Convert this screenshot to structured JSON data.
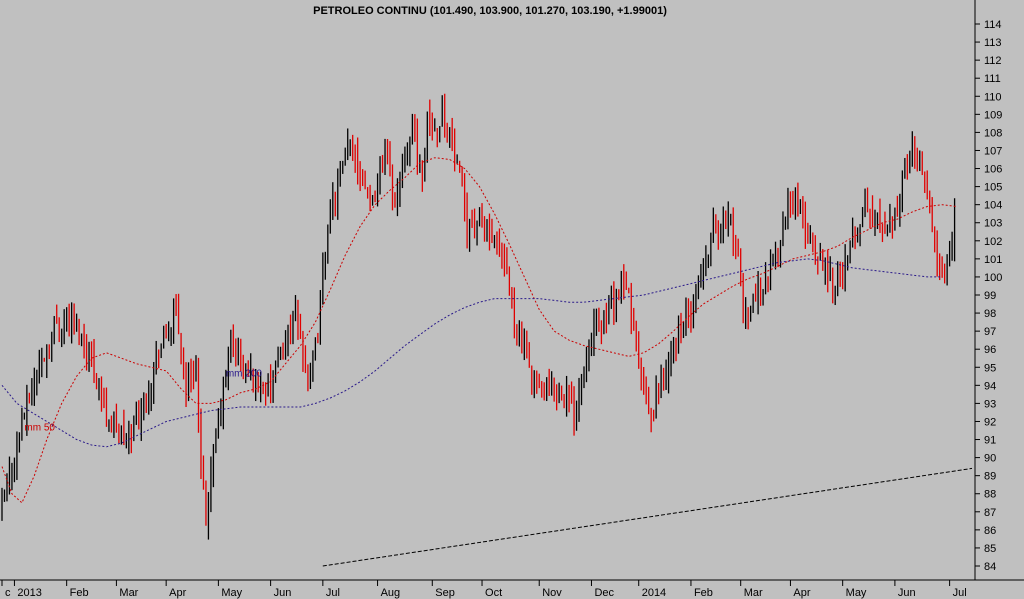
{
  "chart_data": {
    "type": "line",
    "title": "PETROLEO CONTINU (101.490, 103.900, 101.270, 103.190, +1.99001)",
    "ylim": [
      84,
      114
    ],
    "y_ticks": [
      84,
      85,
      86,
      87,
      88,
      89,
      90,
      91,
      92,
      93,
      94,
      95,
      96,
      97,
      98,
      99,
      100,
      101,
      102,
      103,
      104,
      105,
      106,
      107,
      108,
      109,
      110,
      111,
      112,
      113,
      114
    ],
    "x_labels": [
      {
        "label": "c",
        "index": 0
      },
      {
        "label": "2013",
        "index": 5
      },
      {
        "label": "Feb",
        "index": 26
      },
      {
        "label": "Mar",
        "index": 46
      },
      {
        "label": "Apr",
        "index": 66
      },
      {
        "label": "May",
        "index": 87
      },
      {
        "label": "Jun",
        "index": 108
      },
      {
        "label": "Jul",
        "index": 129
      },
      {
        "label": "Aug",
        "index": 151
      },
      {
        "label": "Sep",
        "index": 173
      },
      {
        "label": "Oct",
        "index": 193
      },
      {
        "label": "Nov",
        "index": 216
      },
      {
        "label": "Dec",
        "index": 237
      },
      {
        "label": "2014",
        "index": 256
      },
      {
        "label": "Feb",
        "index": 277
      },
      {
        "label": "Mar",
        "index": 297
      },
      {
        "label": "Apr",
        "index": 317
      },
      {
        "label": "May",
        "index": 338
      },
      {
        "label": "Jun",
        "index": 359
      },
      {
        "label": "Jul",
        "index": 381
      }
    ],
    "series": [
      {
        "name": "PETROLEO CONTINU",
        "color": "#e00000",
        "close_path": [
          [
            0,
            87
          ],
          [
            8,
            92
          ],
          [
            15,
            95
          ],
          [
            22,
            97.5
          ],
          [
            28,
            97.5
          ],
          [
            35,
            96
          ],
          [
            42,
            92.5
          ],
          [
            50,
            91
          ],
          [
            57,
            93
          ],
          [
            63,
            96
          ],
          [
            70,
            98
          ],
          [
            74,
            94
          ],
          [
            78,
            95
          ],
          [
            80,
            89
          ],
          [
            82,
            86.5
          ],
          [
            85,
            90
          ],
          [
            88,
            93
          ],
          [
            92,
            96.5
          ],
          [
            97,
            95
          ],
          [
            103,
            94
          ],
          [
            108,
            94
          ],
          [
            113,
            96
          ],
          [
            118,
            98
          ],
          [
            124,
            94
          ],
          [
            127,
            97
          ],
          [
            131,
            103
          ],
          [
            136,
            105.5
          ],
          [
            140,
            107.5
          ],
          [
            144,
            106
          ],
          [
            149,
            104
          ],
          [
            154,
            107.5
          ],
          [
            158,
            104
          ],
          [
            162,
            107
          ],
          [
            166,
            108
          ],
          [
            169,
            105
          ],
          [
            171,
            109
          ],
          [
            174,
            108
          ],
          [
            177,
            109
          ],
          [
            180,
            108
          ],
          [
            183,
            106
          ],
          [
            187,
            103
          ],
          [
            191,
            103
          ],
          [
            195,
            102.5
          ],
          [
            199,
            101.5
          ],
          [
            203,
            100
          ],
          [
            205,
            98.5
          ],
          [
            208,
            96.5
          ],
          [
            212,
            95
          ],
          [
            216,
            93.5
          ],
          [
            222,
            94
          ],
          [
            227,
            93.5
          ],
          [
            230,
            92.5
          ],
          [
            233,
            94.5
          ],
          [
            237,
            97
          ],
          [
            241,
            97.5
          ],
          [
            245,
            98.5
          ],
          [
            249,
            99.5
          ],
          [
            252,
            99
          ],
          [
            255,
            96
          ],
          [
            258,
            93.5
          ],
          [
            261,
            92
          ],
          [
            264,
            94
          ],
          [
            268,
            95
          ],
          [
            272,
            97
          ],
          [
            277,
            98
          ],
          [
            280,
            99.5
          ],
          [
            283,
            101
          ],
          [
            286,
            103
          ],
          [
            289,
            102.5
          ],
          [
            292,
            103.5
          ],
          [
            295,
            102
          ],
          [
            298,
            98
          ],
          [
            301,
            98.5
          ],
          [
            304,
            99
          ],
          [
            308,
            100
          ],
          [
            312,
            101.5
          ],
          [
            316,
            104
          ],
          [
            319,
            104.5
          ],
          [
            322,
            103
          ],
          [
            326,
            101.5
          ],
          [
            330,
            101
          ],
          [
            333,
            100
          ],
          [
            337,
            100
          ],
          [
            340,
            101
          ],
          [
            343,
            102.5
          ],
          [
            347,
            104
          ],
          [
            351,
            103
          ],
          [
            356,
            103
          ],
          [
            360,
            104
          ],
          [
            363,
            106
          ],
          [
            366,
            107
          ],
          [
            369,
            106.5
          ],
          [
            372,
            105
          ],
          [
            375,
            102
          ],
          [
            378,
            100
          ],
          [
            381,
            101.5
          ],
          [
            383,
            103.2
          ]
        ]
      },
      {
        "name": "mm 50",
        "color": "#cc0000",
        "values": [
          [
            0,
            89.5
          ],
          [
            4,
            88
          ],
          [
            8,
            87.5
          ],
          [
            13,
            89
          ],
          [
            18,
            91
          ],
          [
            24,
            93
          ],
          [
            30,
            94.5
          ],
          [
            36,
            95.5
          ],
          [
            42,
            95.8
          ],
          [
            48,
            95.5
          ],
          [
            54,
            95.2
          ],
          [
            60,
            95
          ],
          [
            66,
            94.8
          ],
          [
            72,
            93.8
          ],
          [
            78,
            93
          ],
          [
            84,
            93
          ],
          [
            90,
            93.2
          ],
          [
            96,
            93.6
          ],
          [
            102,
            93.8
          ],
          [
            108,
            94.2
          ],
          [
            114,
            95.2
          ],
          [
            120,
            96.2
          ],
          [
            126,
            97.5
          ],
          [
            132,
            99.3
          ],
          [
            138,
            101.2
          ],
          [
            144,
            102.8
          ],
          [
            150,
            104
          ],
          [
            156,
            104.8
          ],
          [
            162,
            105.5
          ],
          [
            168,
            106.3
          ],
          [
            174,
            106.6
          ],
          [
            180,
            106.5
          ],
          [
            186,
            106
          ],
          [
            192,
            105
          ],
          [
            198,
            103.5
          ],
          [
            204,
            101.8
          ],
          [
            210,
            100
          ],
          [
            216,
            98.2
          ],
          [
            222,
            97
          ],
          [
            228,
            96.5
          ],
          [
            234,
            96.2
          ],
          [
            240,
            96
          ],
          [
            246,
            95.8
          ],
          [
            252,
            95.6
          ],
          [
            258,
            95.8
          ],
          [
            264,
            96.3
          ],
          [
            270,
            97
          ],
          [
            276,
            97.8
          ],
          [
            282,
            98.5
          ],
          [
            288,
            99
          ],
          [
            294,
            99.5
          ],
          [
            300,
            99.9
          ],
          [
            306,
            100.2
          ],
          [
            312,
            100.6
          ],
          [
            318,
            101
          ],
          [
            324,
            101.2
          ],
          [
            330,
            101.4
          ],
          [
            336,
            101.7
          ],
          [
            342,
            102.2
          ],
          [
            348,
            102.6
          ],
          [
            354,
            103
          ],
          [
            360,
            103.2
          ],
          [
            366,
            103.6
          ],
          [
            372,
            103.9
          ],
          [
            378,
            104
          ],
          [
            384,
            103.9
          ]
        ]
      },
      {
        "name": "mm 200",
        "color": "#2a1a8a",
        "values": [
          [
            0,
            94
          ],
          [
            6,
            93
          ],
          [
            12,
            92.5
          ],
          [
            18,
            92
          ],
          [
            24,
            91.5
          ],
          [
            30,
            91
          ],
          [
            36,
            90.7
          ],
          [
            42,
            90.6
          ],
          [
            48,
            90.8
          ],
          [
            54,
            91.2
          ],
          [
            60,
            91.6
          ],
          [
            66,
            92
          ],
          [
            72,
            92.2
          ],
          [
            78,
            92.4
          ],
          [
            84,
            92.6
          ],
          [
            90,
            92.7
          ],
          [
            96,
            92.8
          ],
          [
            102,
            92.8
          ],
          [
            108,
            92.8
          ],
          [
            114,
            92.8
          ],
          [
            120,
            92.8
          ],
          [
            126,
            93
          ],
          [
            132,
            93.3
          ],
          [
            138,
            93.7
          ],
          [
            144,
            94.2
          ],
          [
            150,
            94.8
          ],
          [
            156,
            95.5
          ],
          [
            162,
            96.2
          ],
          [
            168,
            96.8
          ],
          [
            174,
            97.4
          ],
          [
            180,
            97.9
          ],
          [
            186,
            98.3
          ],
          [
            192,
            98.6
          ],
          [
            198,
            98.8
          ],
          [
            204,
            98.8
          ],
          [
            210,
            98.8
          ],
          [
            216,
            98.8
          ],
          [
            222,
            98.7
          ],
          [
            228,
            98.6
          ],
          [
            234,
            98.6
          ],
          [
            240,
            98.7
          ],
          [
            246,
            98.8
          ],
          [
            252,
            98.9
          ],
          [
            258,
            99
          ],
          [
            264,
            99.2
          ],
          [
            270,
            99.4
          ],
          [
            276,
            99.6
          ],
          [
            282,
            99.8
          ],
          [
            288,
            100
          ],
          [
            294,
            100.2
          ],
          [
            300,
            100.4
          ],
          [
            306,
            100.6
          ],
          [
            312,
            100.8
          ],
          [
            318,
            100.9
          ],
          [
            324,
            101
          ],
          [
            330,
            100.9
          ],
          [
            336,
            100.7
          ],
          [
            342,
            100.5
          ],
          [
            348,
            100.4
          ],
          [
            354,
            100.3
          ],
          [
            360,
            100.2
          ],
          [
            366,
            100.1
          ],
          [
            372,
            100
          ],
          [
            378,
            100
          ]
        ]
      },
      {
        "name": "trendline",
        "color": "#000000",
        "values": [
          [
            129,
            84
          ],
          [
            390,
            89.4
          ]
        ]
      }
    ],
    "annotations": [
      {
        "text": "mm 50",
        "series": "mm 50"
      },
      {
        "text": "mm 200",
        "series": "mm 200"
      }
    ]
  }
}
